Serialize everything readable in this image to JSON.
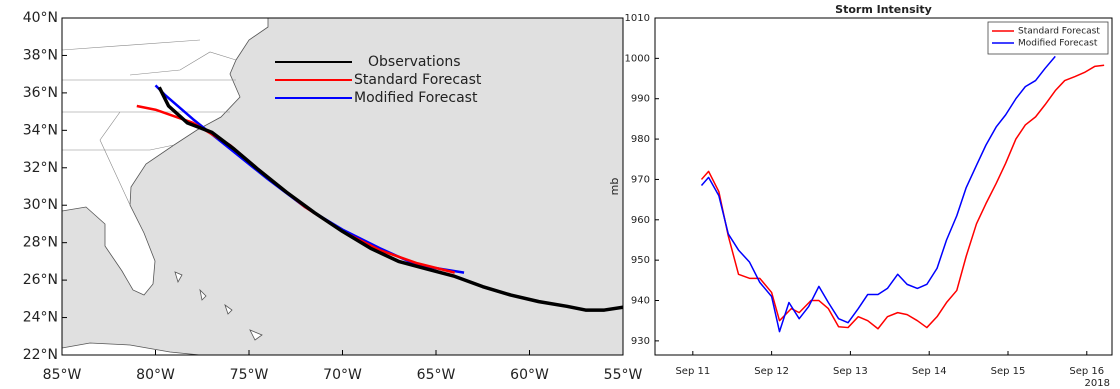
{
  "chart_data": [
    {
      "type": "map",
      "xlim": [
        -85,
        -55
      ],
      "ylim": [
        22,
        40
      ],
      "xticks": [
        {
          "value": -85,
          "label": "85°W"
        },
        {
          "value": -80,
          "label": "80°W"
        },
        {
          "value": -75,
          "label": "75°W"
        },
        {
          "value": -70,
          "label": "70°W"
        },
        {
          "value": -65,
          "label": "65°W"
        },
        {
          "value": -60,
          "label": "60°W"
        },
        {
          "value": -55,
          "label": "55°W"
        }
      ],
      "yticks": [
        {
          "value": 22,
          "label": "22°N"
        },
        {
          "value": 24,
          "label": "24°N"
        },
        {
          "value": 26,
          "label": "26°N"
        },
        {
          "value": 28,
          "label": "28°N"
        },
        {
          "value": 30,
          "label": "30°N"
        },
        {
          "value": 32,
          "label": "32°N"
        },
        {
          "value": 34,
          "label": "34°N"
        },
        {
          "value": 36,
          "label": "36°N"
        },
        {
          "value": 38,
          "label": "38°N"
        },
        {
          "value": 40,
          "label": "40°N"
        }
      ],
      "series": [
        {
          "name": "Observations",
          "color": "#000000",
          "x": [
            -55,
            -56,
            -57,
            -58,
            -59.5,
            -61,
            -62.5,
            -64,
            -65.5,
            -67,
            -68.5,
            -70,
            -71.5,
            -73,
            -74.5,
            -75.8,
            -77,
            -78.3,
            -79.3,
            -79.8
          ],
          "y": [
            24.55,
            24.4,
            24.4,
            24.6,
            24.85,
            25.2,
            25.65,
            26.2,
            26.6,
            27.0,
            27.7,
            28.6,
            29.6,
            30.7,
            31.9,
            33.0,
            33.9,
            34.4,
            35.3,
            36.3
          ]
        },
        {
          "name": "Standard Forecast",
          "color": "#ff0000",
          "x": [
            -64,
            -66,
            -68,
            -70,
            -72,
            -74,
            -76,
            -78,
            -80,
            -81
          ],
          "y": [
            26.4,
            26.9,
            27.6,
            28.6,
            29.9,
            31.5,
            33.2,
            34.4,
            35.1,
            35.3
          ]
        },
        {
          "name": "Modified Forecast",
          "color": "#0000ff",
          "x": [
            -63.5,
            -66,
            -68,
            -70,
            -72,
            -74,
            -76,
            -78,
            -79.5,
            -80
          ],
          "y": [
            26.4,
            26.8,
            27.7,
            28.7,
            29.9,
            31.4,
            33.0,
            34.6,
            35.9,
            36.4
          ]
        }
      ]
    },
    {
      "type": "line",
      "title": "Storm Intensity",
      "ylabel": "mb",
      "x_year_label": "2018",
      "legend": "upper right",
      "xlim": [
        10.52,
        16.32
      ],
      "ylim": [
        926.5,
        1010
      ],
      "xticks": [
        {
          "value": 11,
          "label": "Sep 11"
        },
        {
          "value": 12,
          "label": "Sep 12"
        },
        {
          "value": 13,
          "label": "Sep 13"
        },
        {
          "value": 14,
          "label": "Sep 14"
        },
        {
          "value": 15,
          "label": "Sep 15"
        },
        {
          "value": 16,
          "label": "Sep 16"
        }
      ],
      "yticks": [
        930,
        940,
        950,
        960,
        970,
        980,
        990,
        1000,
        1010
      ],
      "series": [
        {
          "name": "Standard Forecast",
          "color": "#ff0000",
          "x": [
            11.11,
            11.2,
            11.33,
            11.45,
            11.58,
            11.72,
            11.85,
            12.0,
            12.1,
            12.25,
            12.35,
            12.5,
            12.6,
            12.72,
            12.85,
            12.97,
            13.1,
            13.22,
            13.35,
            13.47,
            13.6,
            13.72,
            13.85,
            13.97,
            14.1,
            14.22,
            14.35,
            14.47,
            14.6,
            14.72,
            14.85,
            14.97,
            15.1,
            15.22,
            15.35,
            15.47,
            15.6,
            15.72,
            15.85,
            15.97,
            16.1,
            16.22
          ],
          "values": [
            970,
            972,
            967,
            956,
            946.5,
            945.5,
            945.5,
            942,
            935,
            938,
            937,
            940,
            940,
            938,
            933.5,
            933.3,
            936,
            935,
            933,
            936,
            937,
            936.5,
            935,
            933.3,
            936,
            939.5,
            942.5,
            951,
            959,
            964,
            969,
            974,
            980,
            983.5,
            985.5,
            988.5,
            992,
            994.5,
            995.5,
            996.5,
            998,
            998.3
          ]
        },
        {
          "name": "Modified Forecast",
          "color": "#0000ff",
          "x": [
            11.11,
            11.2,
            11.33,
            11.45,
            11.58,
            11.72,
            11.85,
            12.0,
            12.1,
            12.22,
            12.35,
            12.47,
            12.6,
            12.72,
            12.85,
            12.97,
            13.1,
            13.22,
            13.35,
            13.47,
            13.6,
            13.72,
            13.85,
            13.97,
            14.1,
            14.22,
            14.35,
            14.47,
            14.6,
            14.72,
            14.85,
            14.97,
            15.1,
            15.22,
            15.35,
            15.47,
            15.6
          ],
          "values": [
            968.5,
            970.5,
            966,
            956.5,
            952.5,
            949.5,
            944.5,
            941,
            932.3,
            939.5,
            935.5,
            938.5,
            943.5,
            939.5,
            935.5,
            934.5,
            938,
            941.5,
            941.5,
            943,
            946.5,
            944,
            943,
            944,
            948,
            955,
            961,
            968,
            973.5,
            978.5,
            983,
            986,
            990,
            993,
            994.5,
            997.5,
            1000.5
          ]
        }
      ]
    }
  ]
}
